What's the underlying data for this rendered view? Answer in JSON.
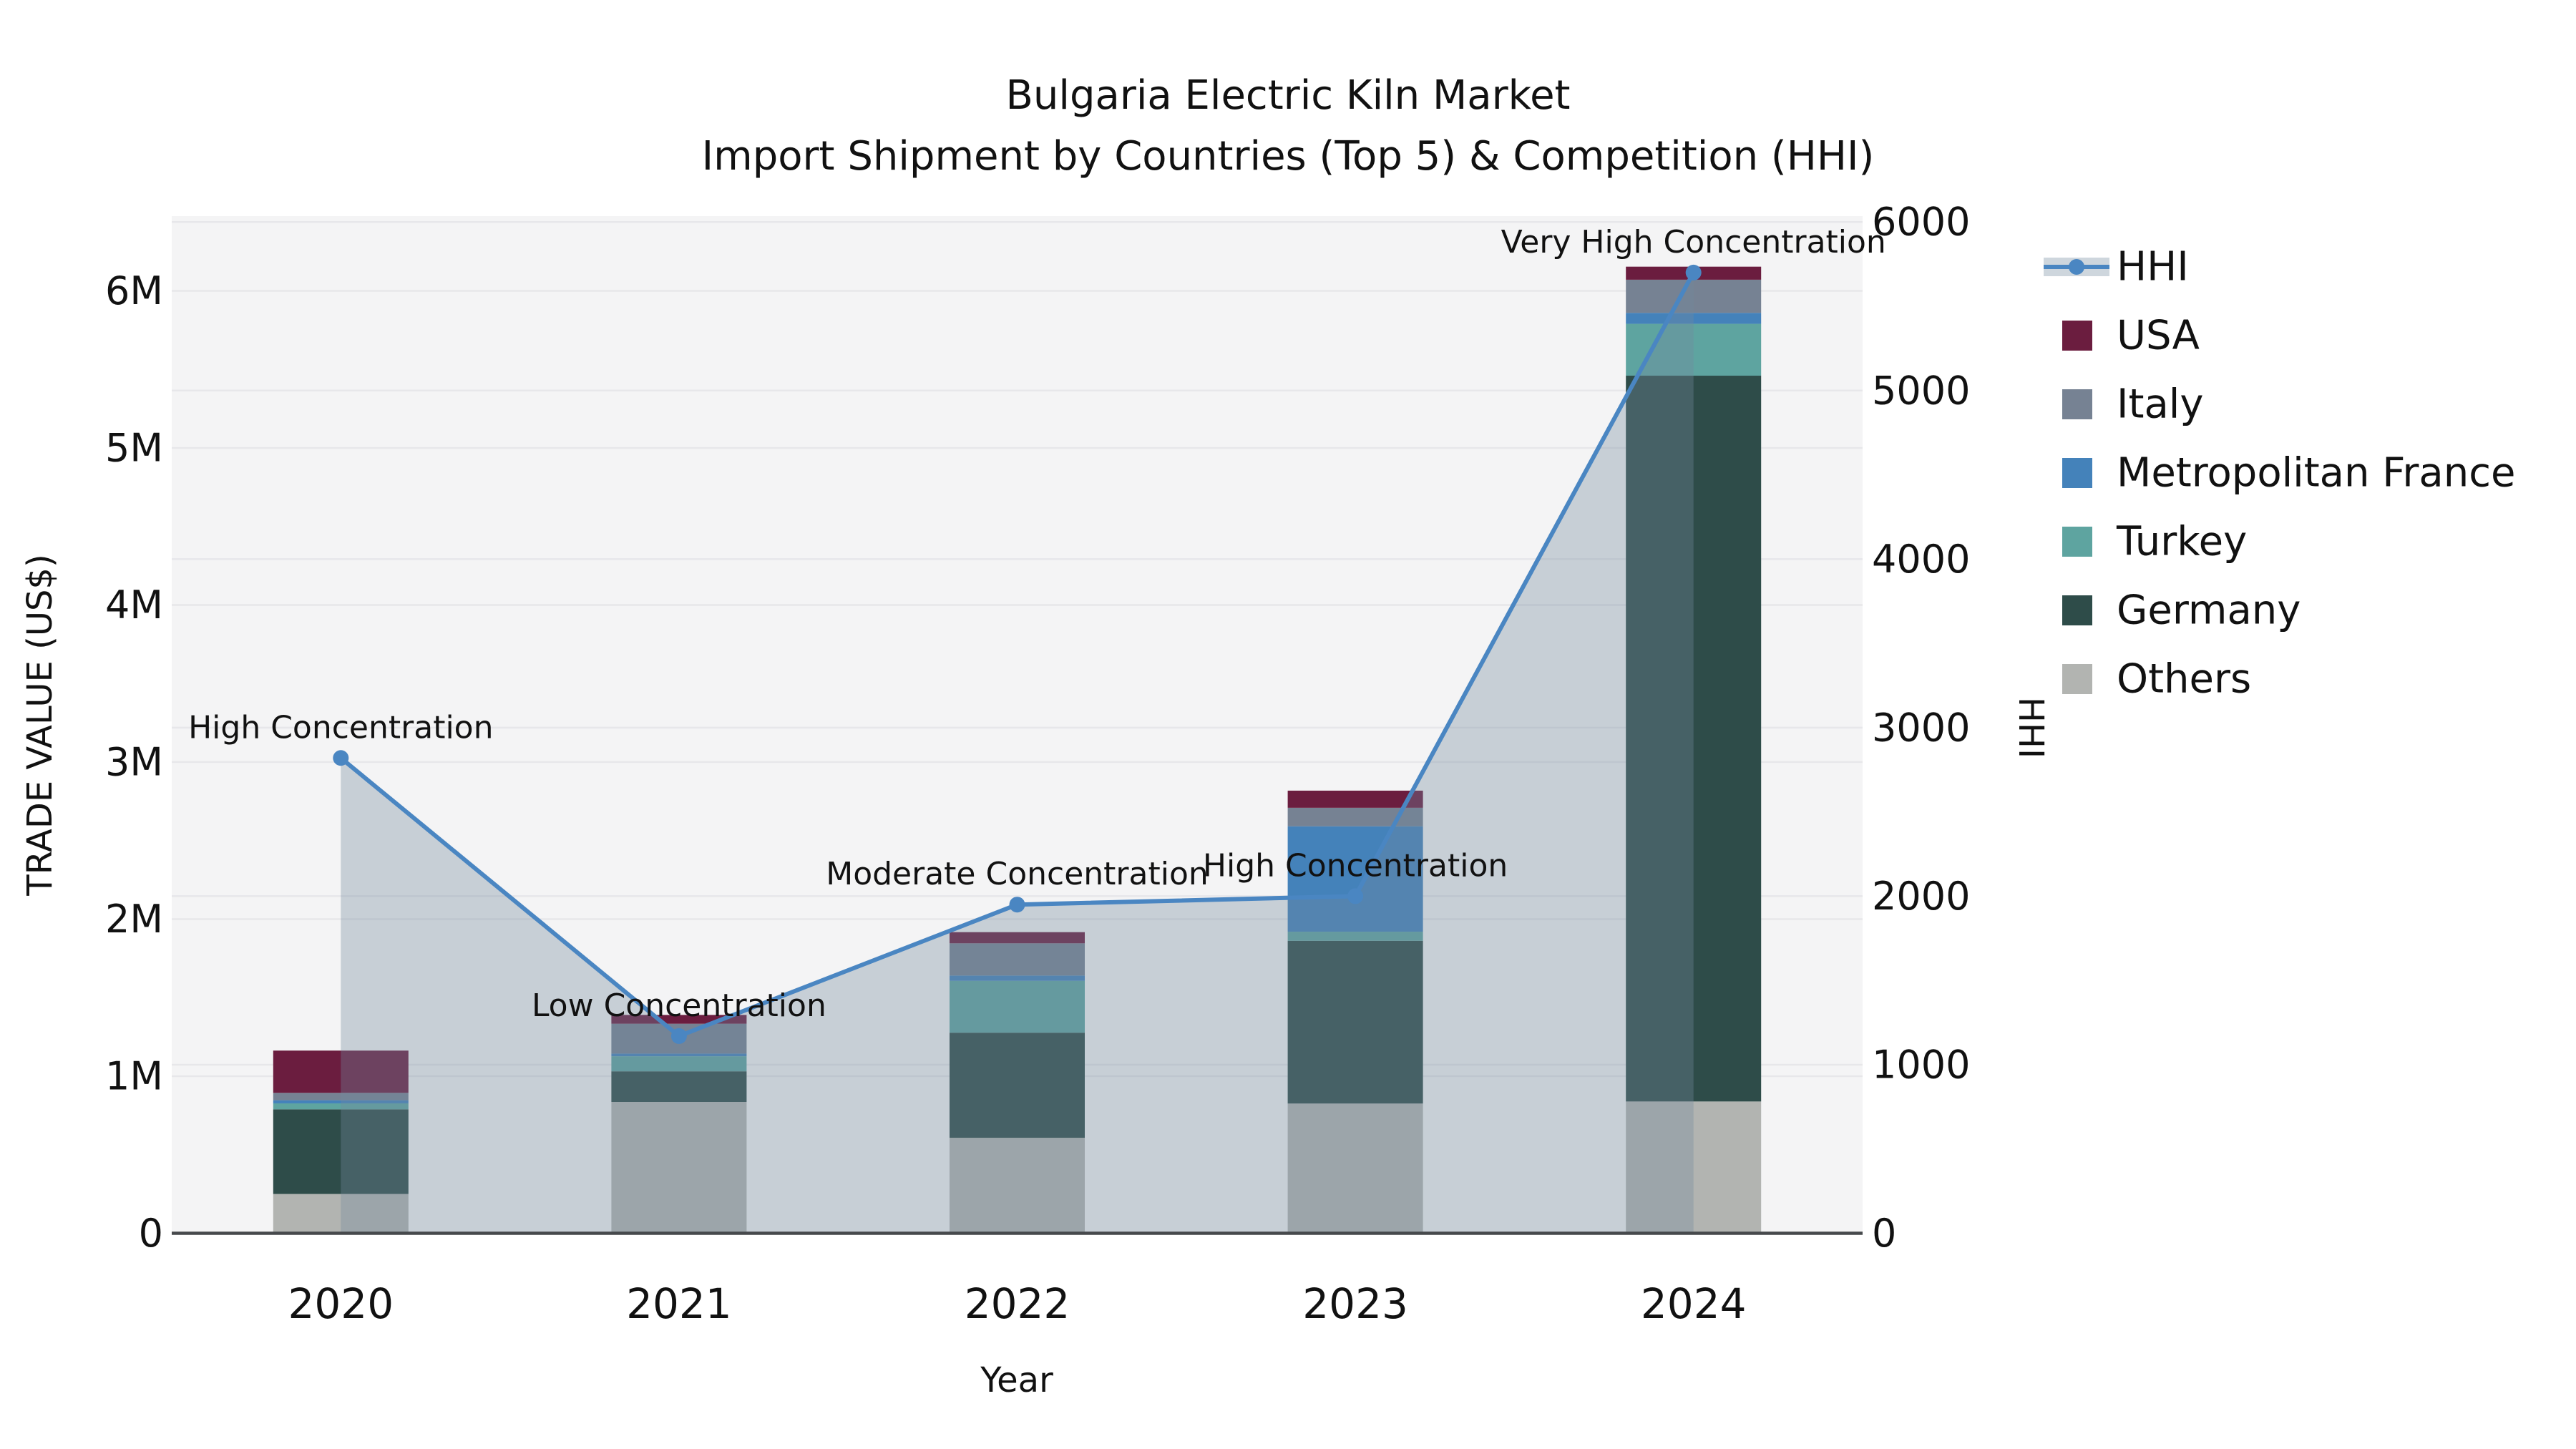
{
  "figure": {
    "title_line1": "Bulgaria Electric Kiln Market",
    "title_line2": "Import Shipment by Countries (Top 5) & Competition (HHI)"
  },
  "colors": {
    "plot_bg": "#f4f4f5",
    "grid": "#e7e7ea",
    "axis_line": "#46494c",
    "text": "#111111",
    "hhi_line": "#4a86c2",
    "hhi_fill": "rgba(116,137,159,0.35)"
  },
  "chart_data": {
    "type": "bar",
    "subtype": "stacked-bar-with-line-overlay",
    "title": "Bulgaria Electric Kiln Market — Import Shipment by Countries (Top 5) & Competition (HHI)",
    "categories": [
      "2020",
      "2021",
      "2022",
      "2023",
      "2024"
    ],
    "xlabel": "Year",
    "ylabel_left": "TRADE VALUE (US$)",
    "ylabel_right": "HHI",
    "ylim_left": [
      0,
      6476000
    ],
    "ylim_right": [
      0,
      6035
    ],
    "grid": true,
    "left_ticks": [
      {
        "label": "0",
        "value": 0
      },
      {
        "label": "1M",
        "value": 1000000
      },
      {
        "label": "2M",
        "value": 2000000
      },
      {
        "label": "3M",
        "value": 3000000
      },
      {
        "label": "4M",
        "value": 4000000
      },
      {
        "label": "5M",
        "value": 5000000
      },
      {
        "label": "6M",
        "value": 6000000
      }
    ],
    "right_ticks": [
      {
        "label": "0",
        "value": 0
      },
      {
        "label": "1000",
        "value": 1000
      },
      {
        "label": "2000",
        "value": 2000
      },
      {
        "label": "3000",
        "value": 3000
      },
      {
        "label": "4000",
        "value": 4000
      },
      {
        "label": "5000",
        "value": 5000
      },
      {
        "label": "6000",
        "value": 6000
      }
    ],
    "stack_order_bottom_to_top": [
      "Others",
      "Germany",
      "Turkey",
      "Metropolitan France",
      "Italy",
      "USA"
    ],
    "series": [
      {
        "name": "Others",
        "color": "#b2b4b1",
        "values": [
          250000,
          836000,
          608000,
          826000,
          839000
        ]
      },
      {
        "name": "Germany",
        "color": "#2e4c49",
        "values": [
          539000,
          195000,
          669000,
          1036000,
          4621000
        ]
      },
      {
        "name": "Turkey",
        "color": "#5ea4a0",
        "values": [
          38000,
          96000,
          330000,
          58000,
          330000
        ]
      },
      {
        "name": "Metropolitan France",
        "color": "#4482ba",
        "values": [
          20000,
          17000,
          34000,
          671000,
          70000
        ]
      },
      {
        "name": "Italy",
        "color": "#768293",
        "values": [
          47000,
          190000,
          205000,
          118000,
          211000
        ]
      },
      {
        "name": "USA",
        "color": "#6b1d3f",
        "values": [
          269000,
          56000,
          71000,
          109000,
          83000
        ]
      }
    ],
    "bar_totals": [
      1163000,
      1390000,
      1917000,
      2818000,
      6154000
    ],
    "line_series": {
      "name": "HHI",
      "color": "#4a86c2",
      "fill": "rgba(116,137,159,0.35)",
      "values": [
        2820,
        1170,
        1950,
        2000,
        5700
      ]
    },
    "annotations": [
      {
        "year": "2020",
        "label": "High Concentration"
      },
      {
        "year": "2021",
        "label": "Low Concentration"
      },
      {
        "year": "2022",
        "label": "Moderate Concentration"
      },
      {
        "year": "2023",
        "label": "High Concentration"
      },
      {
        "year": "2024",
        "label": "Very High Concentration"
      }
    ],
    "legend_position": "right",
    "legend": [
      "HHI",
      "USA",
      "Italy",
      "Metropolitan France",
      "Turkey",
      "Germany",
      "Others"
    ]
  }
}
